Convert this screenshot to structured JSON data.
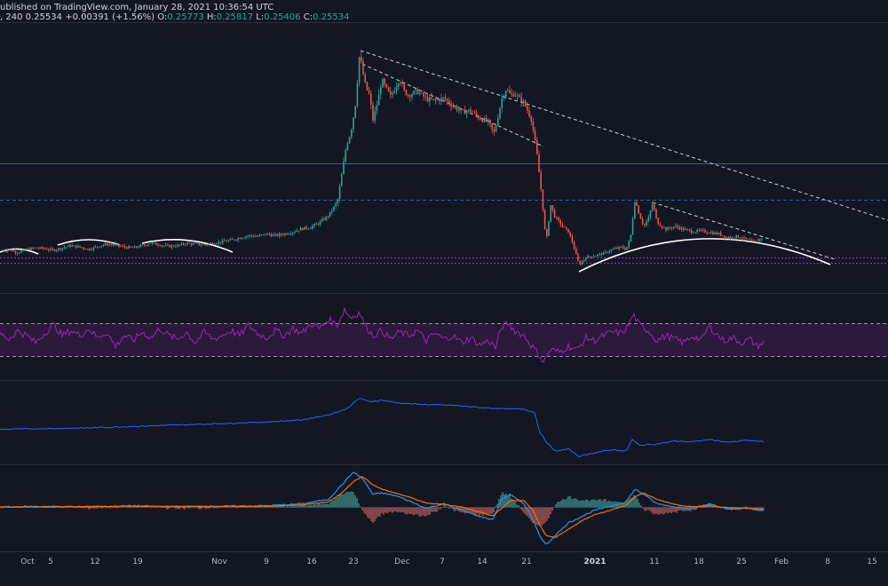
{
  "header": {
    "published": "ublished on TradingView.com, January 28, 2021 10:36:54 UTC",
    "prefix": ", 240",
    "last": "0.25534",
    "change": "+0.00391 (+1.56%)",
    "open_label": "O:",
    "open": "0.25773",
    "high_label": "H:",
    "high": "0.25817",
    "low_label": "L:",
    "low": "0.25406",
    "close_label": "C:",
    "close": "0.25534"
  },
  "colors": {
    "background": "#131722",
    "up": "#26a69a",
    "down": "#ef5350",
    "rsi": "#9c27b0",
    "obv": "#2962ff",
    "macd": "#2196f3",
    "signal": "#ff6d00",
    "level": "#2962ff",
    "support": "#9c27b0"
  },
  "chart_data": {
    "type": "candlestick",
    "timeframe": "240",
    "x_ticks": [
      "Oct",
      "5",
      "12",
      "19",
      "Nov",
      "9",
      "16",
      "23",
      "Dec",
      "7",
      "14",
      "21",
      "2021",
      "11",
      "18",
      "25",
      "Feb",
      "8",
      "15"
    ],
    "price_path": [
      [
        0,
        0.168
      ],
      [
        10,
        0.17
      ],
      [
        20,
        0.166
      ],
      [
        30,
        0.17
      ],
      [
        40,
        0.172
      ],
      [
        50,
        0.171
      ],
      [
        60,
        0.169
      ],
      [
        70,
        0.172
      ],
      [
        80,
        0.175
      ],
      [
        90,
        0.173
      ],
      [
        100,
        0.17
      ],
      [
        110,
        0.174
      ],
      [
        120,
        0.177
      ],
      [
        130,
        0.176
      ],
      [
        140,
        0.173
      ],
      [
        150,
        0.172
      ],
      [
        160,
        0.175
      ],
      [
        170,
        0.178
      ],
      [
        180,
        0.176
      ],
      [
        190,
        0.174
      ],
      [
        200,
        0.175
      ],
      [
        210,
        0.178
      ],
      [
        220,
        0.177
      ],
      [
        230,
        0.176
      ],
      [
        240,
        0.178
      ],
      [
        250,
        0.18
      ],
      [
        260,
        0.182
      ],
      [
        270,
        0.185
      ],
      [
        280,
        0.188
      ],
      [
        290,
        0.187
      ],
      [
        300,
        0.19
      ],
      [
        310,
        0.188
      ],
      [
        320,
        0.19
      ],
      [
        330,
        0.193
      ],
      [
        340,
        0.197
      ],
      [
        350,
        0.199
      ],
      [
        360,
        0.205
      ],
      [
        370,
        0.214
      ],
      [
        380,
        0.232
      ],
      [
        385,
        0.268
      ],
      [
        390,
        0.305
      ],
      [
        395,
        0.322
      ],
      [
        400,
        0.355
      ],
      [
        405,
        0.425
      ],
      [
        408,
        0.402
      ],
      [
        412,
        0.38
      ],
      [
        416,
        0.37
      ],
      [
        420,
        0.338
      ],
      [
        425,
        0.36
      ],
      [
        430,
        0.39
      ],
      [
        435,
        0.378
      ],
      [
        440,
        0.368
      ],
      [
        445,
        0.38
      ],
      [
        450,
        0.392
      ],
      [
        455,
        0.375
      ],
      [
        460,
        0.37
      ],
      [
        470,
        0.375
      ],
      [
        480,
        0.365
      ],
      [
        490,
        0.363
      ],
      [
        500,
        0.366
      ],
      [
        510,
        0.356
      ],
      [
        520,
        0.348
      ],
      [
        530,
        0.35
      ],
      [
        540,
        0.34
      ],
      [
        550,
        0.335
      ],
      [
        556,
        0.32
      ],
      [
        560,
        0.338
      ],
      [
        565,
        0.365
      ],
      [
        570,
        0.378
      ],
      [
        575,
        0.37
      ],
      [
        580,
        0.372
      ],
      [
        585,
        0.365
      ],
      [
        590,
        0.36
      ],
      [
        598,
        0.34
      ],
      [
        604,
        0.3
      ],
      [
        610,
        0.24
      ],
      [
        615,
        0.178
      ],
      [
        620,
        0.228
      ],
      [
        625,
        0.212
      ],
      [
        630,
        0.205
      ],
      [
        635,
        0.198
      ],
      [
        640,
        0.193
      ],
      [
        645,
        0.178
      ],
      [
        652,
        0.15
      ],
      [
        660,
        0.16
      ],
      [
        670,
        0.162
      ],
      [
        680,
        0.165
      ],
      [
        690,
        0.17
      ],
      [
        700,
        0.173
      ],
      [
        705,
        0.17
      ],
      [
        710,
        0.185
      ],
      [
        715,
        0.235
      ],
      [
        720,
        0.215
      ],
      [
        725,
        0.2
      ],
      [
        730,
        0.21
      ],
      [
        735,
        0.23
      ],
      [
        740,
        0.205
      ],
      [
        750,
        0.196
      ],
      [
        760,
        0.2
      ],
      [
        770,
        0.196
      ],
      [
        780,
        0.193
      ],
      [
        790,
        0.194
      ],
      [
        800,
        0.192
      ],
      [
        810,
        0.19
      ],
      [
        820,
        0.185
      ],
      [
        830,
        0.187
      ],
      [
        840,
        0.183
      ],
      [
        850,
        0.18
      ],
      [
        860,
        0.186
      ]
    ],
    "rsi_path": [
      [
        0,
        0.58
      ],
      [
        10,
        0.5
      ],
      [
        20,
        0.62
      ],
      [
        30,
        0.55
      ],
      [
        40,
        0.45
      ],
      [
        50,
        0.58
      ],
      [
        60,
        0.7
      ],
      [
        70,
        0.55
      ],
      [
        80,
        0.62
      ],
      [
        90,
        0.55
      ],
      [
        100,
        0.65
      ],
      [
        110,
        0.52
      ],
      [
        120,
        0.6
      ],
      [
        130,
        0.4
      ],
      [
        140,
        0.55
      ],
      [
        150,
        0.48
      ],
      [
        160,
        0.6
      ],
      [
        170,
        0.52
      ],
      [
        180,
        0.65
      ],
      [
        190,
        0.55
      ],
      [
        200,
        0.5
      ],
      [
        210,
        0.6
      ],
      [
        220,
        0.45
      ],
      [
        230,
        0.6
      ],
      [
        240,
        0.5
      ],
      [
        250,
        0.55
      ],
      [
        260,
        0.62
      ],
      [
        270,
        0.55
      ],
      [
        280,
        0.7
      ],
      [
        290,
        0.58
      ],
      [
        300,
        0.52
      ],
      [
        310,
        0.62
      ],
      [
        320,
        0.55
      ],
      [
        330,
        0.65
      ],
      [
        340,
        0.58
      ],
      [
        350,
        0.72
      ],
      [
        360,
        0.65
      ],
      [
        370,
        0.78
      ],
      [
        380,
        0.7
      ],
      [
        388,
        0.92
      ],
      [
        395,
        0.8
      ],
      [
        405,
        0.88
      ],
      [
        410,
        0.72
      ],
      [
        420,
        0.55
      ],
      [
        430,
        0.62
      ],
      [
        440,
        0.5
      ],
      [
        450,
        0.6
      ],
      [
        460,
        0.55
      ],
      [
        470,
        0.62
      ],
      [
        480,
        0.48
      ],
      [
        490,
        0.58
      ],
      [
        500,
        0.5
      ],
      [
        510,
        0.55
      ],
      [
        520,
        0.45
      ],
      [
        530,
        0.52
      ],
      [
        540,
        0.42
      ],
      [
        550,
        0.48
      ],
      [
        558,
        0.38
      ],
      [
        565,
        0.68
      ],
      [
        572,
        0.72
      ],
      [
        580,
        0.62
      ],
      [
        590,
        0.55
      ],
      [
        598,
        0.42
      ],
      [
        606,
        0.3
      ],
      [
        612,
        0.18
      ],
      [
        620,
        0.35
      ],
      [
        630,
        0.32
      ],
      [
        640,
        0.4
      ],
      [
        650,
        0.35
      ],
      [
        660,
        0.52
      ],
      [
        670,
        0.48
      ],
      [
        680,
        0.55
      ],
      [
        690,
        0.6
      ],
      [
        700,
        0.58
      ],
      [
        708,
        0.7
      ],
      [
        713,
        0.85
      ],
      [
        720,
        0.7
      ],
      [
        730,
        0.62
      ],
      [
        740,
        0.48
      ],
      [
        750,
        0.55
      ],
      [
        760,
        0.5
      ],
      [
        770,
        0.45
      ],
      [
        780,
        0.55
      ],
      [
        790,
        0.48
      ],
      [
        798,
        0.68
      ],
      [
        805,
        0.6
      ],
      [
        815,
        0.48
      ],
      [
        825,
        0.52
      ],
      [
        835,
        0.45
      ],
      [
        845,
        0.5
      ],
      [
        852,
        0.4
      ],
      [
        860,
        0.45
      ]
    ],
    "obv_path": [
      [
        0,
        0.42
      ],
      [
        50,
        0.43
      ],
      [
        100,
        0.44
      ],
      [
        150,
        0.46
      ],
      [
        200,
        0.48
      ],
      [
        250,
        0.5
      ],
      [
        300,
        0.52
      ],
      [
        340,
        0.55
      ],
      [
        370,
        0.62
      ],
      [
        390,
        0.7
      ],
      [
        405,
        0.85
      ],
      [
        415,
        0.8
      ],
      [
        430,
        0.82
      ],
      [
        450,
        0.78
      ],
      [
        480,
        0.76
      ],
      [
        510,
        0.75
      ],
      [
        540,
        0.72
      ],
      [
        570,
        0.7
      ],
      [
        590,
        0.7
      ],
      [
        602,
        0.65
      ],
      [
        608,
        0.38
      ],
      [
        615,
        0.25
      ],
      [
        625,
        0.12
      ],
      [
        640,
        0.15
      ],
      [
        652,
        0.05
      ],
      [
        670,
        0.1
      ],
      [
        690,
        0.14
      ],
      [
        705,
        0.12
      ],
      [
        712,
        0.28
      ],
      [
        720,
        0.2
      ],
      [
        740,
        0.22
      ],
      [
        760,
        0.26
      ],
      [
        780,
        0.25
      ],
      [
        800,
        0.28
      ],
      [
        820,
        0.24
      ],
      [
        840,
        0.27
      ],
      [
        860,
        0.25
      ]
    ],
    "macd_path": [
      [
        0,
        0.5
      ],
      [
        50,
        0.51
      ],
      [
        100,
        0.5
      ],
      [
        150,
        0.52
      ],
      [
        200,
        0.5
      ],
      [
        250,
        0.51
      ],
      [
        300,
        0.52
      ],
      [
        340,
        0.55
      ],
      [
        370,
        0.62
      ],
      [
        385,
        0.85
      ],
      [
        398,
        1.05
      ],
      [
        408,
        0.95
      ],
      [
        420,
        0.7
      ],
      [
        430,
        0.72
      ],
      [
        445,
        0.68
      ],
      [
        460,
        0.6
      ],
      [
        480,
        0.48
      ],
      [
        500,
        0.55
      ],
      [
        520,
        0.45
      ],
      [
        540,
        0.35
      ],
      [
        555,
        0.3
      ],
      [
        565,
        0.62
      ],
      [
        575,
        0.7
      ],
      [
        590,
        0.55
      ],
      [
        600,
        0.3
      ],
      [
        608,
        0.05
      ],
      [
        615,
        -0.1
      ],
      [
        625,
        0.05
      ],
      [
        640,
        0.25
      ],
      [
        655,
        0.35
      ],
      [
        670,
        0.45
      ],
      [
        690,
        0.52
      ],
      [
        705,
        0.58
      ],
      [
        715,
        0.78
      ],
      [
        725,
        0.7
      ],
      [
        740,
        0.55
      ],
      [
        760,
        0.5
      ],
      [
        780,
        0.48
      ],
      [
        800,
        0.55
      ],
      [
        820,
        0.46
      ],
      [
        840,
        0.48
      ],
      [
        860,
        0.44
      ]
    ],
    "signal_path": [
      [
        0,
        0.5
      ],
      [
        50,
        0.5
      ],
      [
        100,
        0.51
      ],
      [
        150,
        0.51
      ],
      [
        200,
        0.51
      ],
      [
        250,
        0.51
      ],
      [
        300,
        0.51
      ],
      [
        340,
        0.53
      ],
      [
        370,
        0.58
      ],
      [
        385,
        0.72
      ],
      [
        398,
        0.9
      ],
      [
        408,
        0.98
      ],
      [
        420,
        0.85
      ],
      [
        430,
        0.78
      ],
      [
        445,
        0.72
      ],
      [
        460,
        0.66
      ],
      [
        480,
        0.56
      ],
      [
        500,
        0.54
      ],
      [
        520,
        0.5
      ],
      [
        540,
        0.42
      ],
      [
        555,
        0.36
      ],
      [
        565,
        0.48
      ],
      [
        575,
        0.6
      ],
      [
        590,
        0.6
      ],
      [
        600,
        0.45
      ],
      [
        608,
        0.22
      ],
      [
        615,
        0.05
      ],
      [
        625,
        0.02
      ],
      [
        640,
        0.15
      ],
      [
        655,
        0.28
      ],
      [
        670,
        0.38
      ],
      [
        690,
        0.46
      ],
      [
        705,
        0.53
      ],
      [
        715,
        0.66
      ],
      [
        725,
        0.72
      ],
      [
        740,
        0.62
      ],
      [
        760,
        0.54
      ],
      [
        780,
        0.5
      ],
      [
        800,
        0.52
      ],
      [
        820,
        0.49
      ],
      [
        840,
        0.48
      ],
      [
        860,
        0.46
      ]
    ]
  }
}
